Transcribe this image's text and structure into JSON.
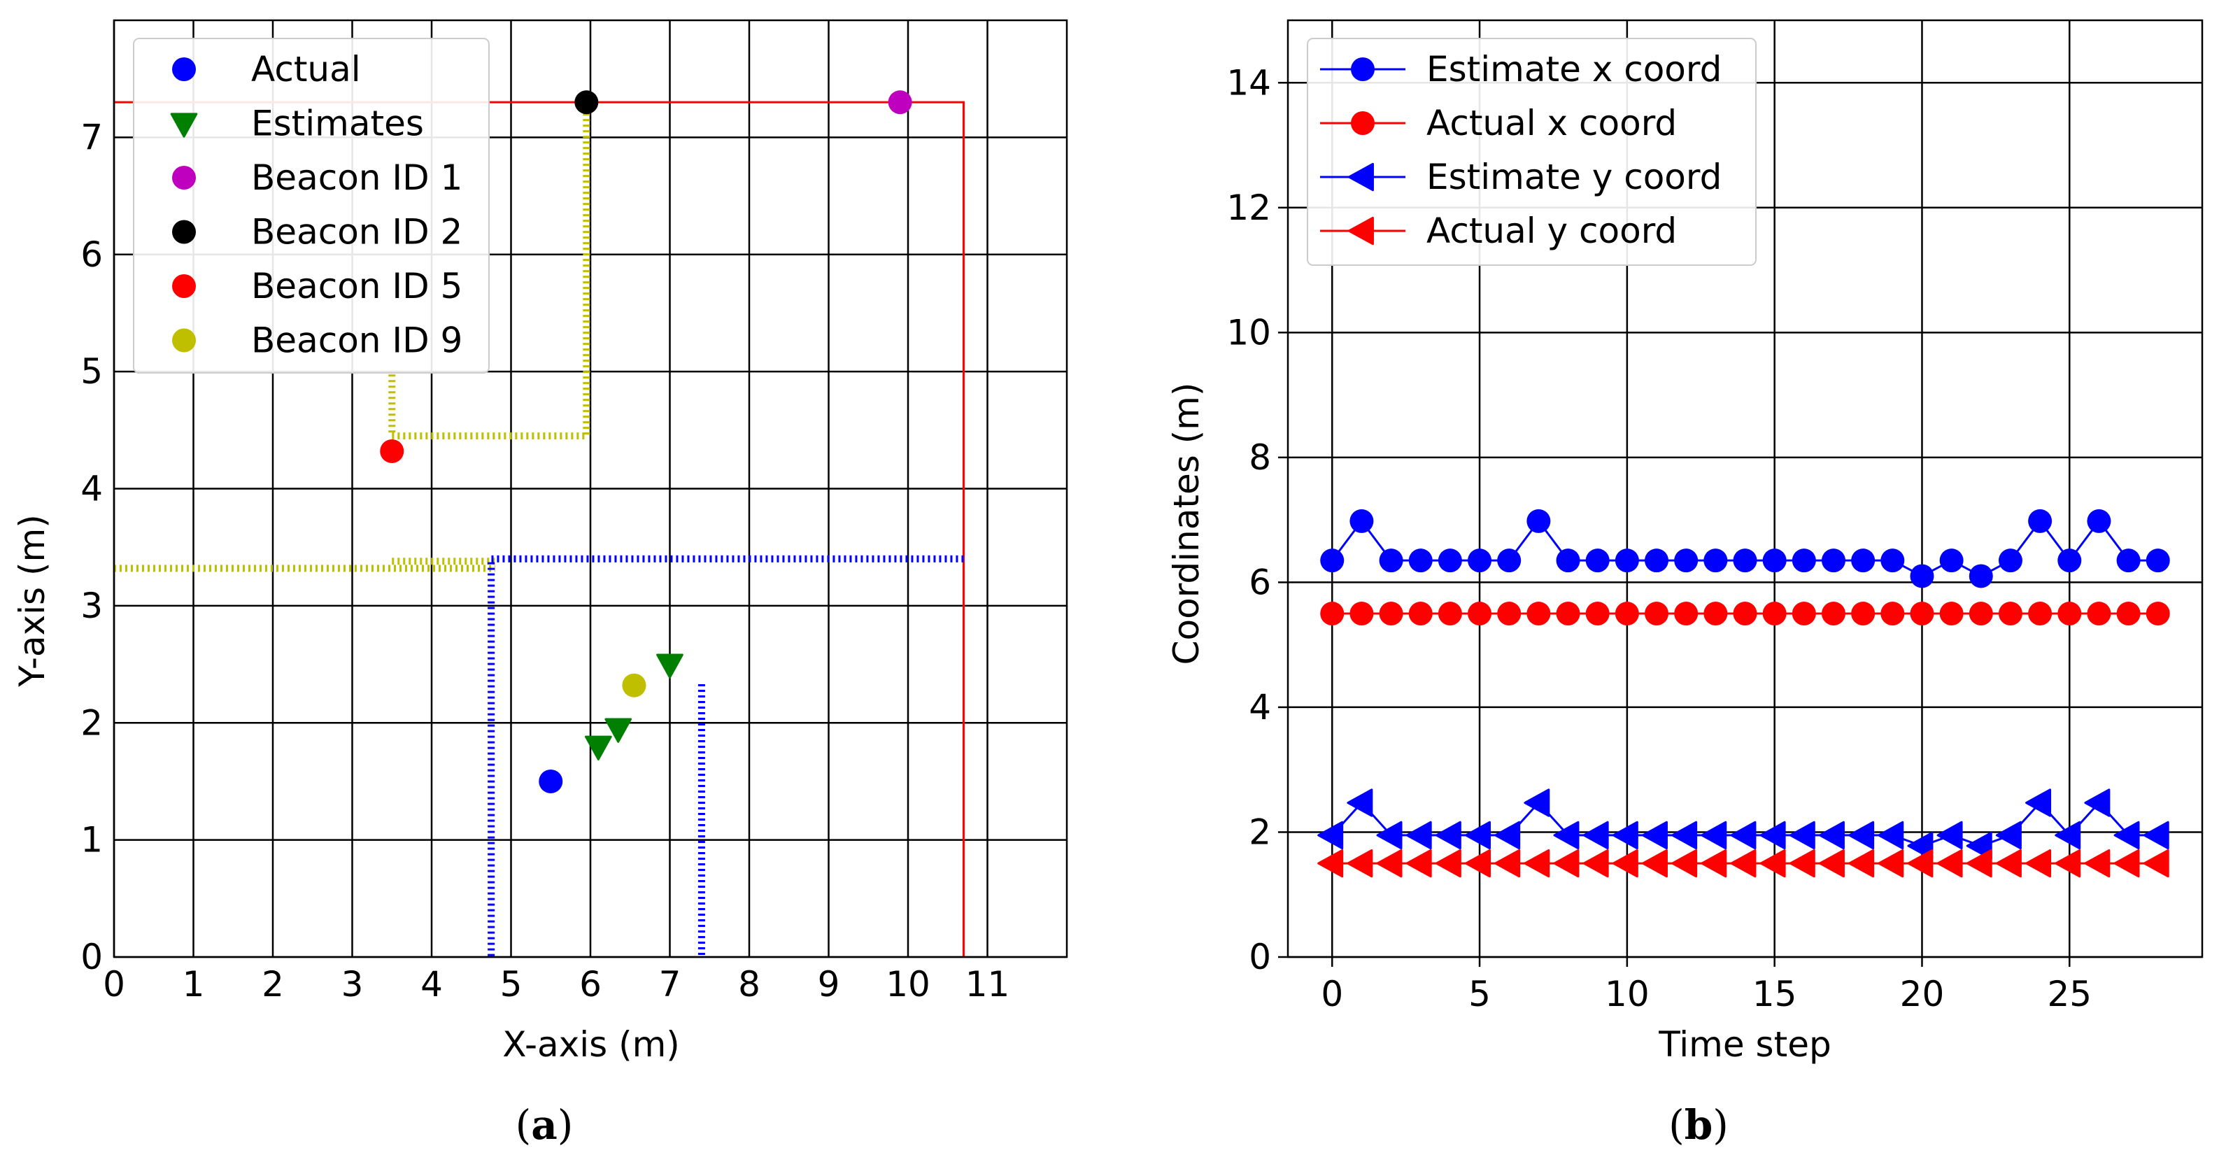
{
  "colors": {
    "blue": "#0000ff",
    "red": "#ff0000",
    "green": "#007f00",
    "magenta": "#bf00bf",
    "black": "#000000",
    "olive": "#bfbf00",
    "grid": "#000000"
  },
  "chart_data": [
    {
      "type": "scatter",
      "caption_letter": "a",
      "caption": "(a)",
      "xlabel": "X-axis (m)",
      "ylabel": "Y-axis (m)",
      "xlim": [
        0,
        12
      ],
      "ylim": [
        0,
        8
      ],
      "xticks": [
        0,
        1,
        2,
        3,
        4,
        5,
        6,
        7,
        8,
        9,
        10,
        11
      ],
      "yticks": [
        0,
        1,
        2,
        3,
        4,
        5,
        6,
        7
      ],
      "grid": true,
      "legend_position": "top-left",
      "legend": [
        {
          "label": "Actual",
          "color": "blue",
          "marker": "circle"
        },
        {
          "label": "Estimates",
          "color": "green",
          "marker": "triangle-down"
        },
        {
          "label": "Beacon ID 1",
          "color": "magenta",
          "marker": "circle"
        },
        {
          "label": "Beacon ID 2",
          "color": "black",
          "marker": "circle"
        },
        {
          "label": "Beacon ID 5",
          "color": "red",
          "marker": "circle"
        },
        {
          "label": "Beacon ID 9",
          "color": "olive",
          "marker": "circle"
        }
      ],
      "points": {
        "actual": [
          [
            5.5,
            1.5
          ]
        ],
        "estimates": [
          [
            6.1,
            1.8
          ],
          [
            6.35,
            1.95
          ],
          [
            7.0,
            2.5
          ]
        ],
        "beacon_1": [
          [
            9.9,
            7.3
          ]
        ],
        "beacon_2": [
          [
            5.95,
            7.3
          ]
        ],
        "beacon_5": [
          [
            3.5,
            4.32
          ]
        ],
        "beacon_9": [
          [
            6.55,
            2.32
          ]
        ]
      },
      "room_lines": [
        {
          "color": "red",
          "style": "solid",
          "points": [
            [
              0,
              7.3
            ],
            [
              10.7,
              7.3
            ],
            [
              10.7,
              0
            ]
          ]
        },
        {
          "color": "olive",
          "style": "dotted",
          "points": [
            [
              5.95,
              7.3
            ],
            [
              5.95,
              4.45
            ],
            [
              3.5,
              4.45
            ],
            [
              3.5,
              5.0
            ]
          ]
        },
        {
          "color": "olive",
          "style": "dotted",
          "points": [
            [
              0,
              3.32
            ],
            [
              4.8,
              3.32
            ]
          ]
        },
        {
          "color": "olive",
          "style": "dotted",
          "points": [
            [
              3.5,
              3.38
            ],
            [
              4.8,
              3.38
            ]
          ]
        },
        {
          "color": "blue",
          "style": "dotted",
          "points": [
            [
              10.7,
              3.4
            ],
            [
              4.75,
              3.4
            ],
            [
              4.75,
              0
            ]
          ]
        },
        {
          "color": "blue",
          "style": "dotted",
          "points": [
            [
              7.4,
              2.33
            ],
            [
              7.4,
              0
            ]
          ]
        }
      ]
    },
    {
      "type": "line",
      "caption_letter": "b",
      "caption": "(b)",
      "xlabel": "Time step",
      "ylabel": "Coordinates (m)",
      "xlim": [
        -1.5,
        29.5
      ],
      "ylim": [
        0,
        15
      ],
      "xticks": [
        0,
        5,
        10,
        15,
        20,
        25
      ],
      "yticks": [
        0,
        2,
        4,
        6,
        8,
        10,
        12,
        14
      ],
      "grid": true,
      "legend_position": "top-left",
      "x": [
        0,
        1,
        2,
        3,
        4,
        5,
        6,
        7,
        8,
        9,
        10,
        11,
        12,
        13,
        14,
        15,
        16,
        17,
        18,
        19,
        20,
        21,
        22,
        23,
        24,
        25,
        26,
        27,
        28
      ],
      "series": [
        {
          "name": "Estimate x coord",
          "color": "blue",
          "marker": "circle",
          "values": [
            6.35,
            6.98,
            6.35,
            6.35,
            6.35,
            6.35,
            6.35,
            6.98,
            6.35,
            6.35,
            6.35,
            6.35,
            6.35,
            6.35,
            6.35,
            6.35,
            6.35,
            6.35,
            6.35,
            6.35,
            6.1,
            6.35,
            6.1,
            6.35,
            6.98,
            6.35,
            6.98,
            6.35,
            6.35
          ]
        },
        {
          "name": "Actual x coord",
          "color": "red",
          "marker": "circle",
          "values": [
            5.5,
            5.5,
            5.5,
            5.5,
            5.5,
            5.5,
            5.5,
            5.5,
            5.5,
            5.5,
            5.5,
            5.5,
            5.5,
            5.5,
            5.5,
            5.5,
            5.5,
            5.5,
            5.5,
            5.5,
            5.5,
            5.5,
            5.5,
            5.5,
            5.5,
            5.5,
            5.5,
            5.5,
            5.5
          ]
        },
        {
          "name": "Estimate y coord",
          "color": "blue",
          "marker": "triangle-left",
          "values": [
            1.95,
            2.47,
            1.95,
            1.95,
            1.95,
            1.95,
            1.95,
            2.47,
            1.95,
            1.95,
            1.95,
            1.95,
            1.95,
            1.95,
            1.95,
            1.95,
            1.95,
            1.95,
            1.95,
            1.95,
            1.78,
            1.95,
            1.78,
            1.95,
            2.47,
            1.95,
            2.47,
            1.95,
            1.95
          ]
        },
        {
          "name": "Actual y coord",
          "color": "red",
          "marker": "triangle-left",
          "values": [
            1.5,
            1.5,
            1.5,
            1.5,
            1.5,
            1.5,
            1.5,
            1.5,
            1.5,
            1.5,
            1.5,
            1.5,
            1.5,
            1.5,
            1.5,
            1.5,
            1.5,
            1.5,
            1.5,
            1.5,
            1.5,
            1.5,
            1.5,
            1.5,
            1.5,
            1.5,
            1.5,
            1.5,
            1.5
          ]
        }
      ]
    }
  ]
}
